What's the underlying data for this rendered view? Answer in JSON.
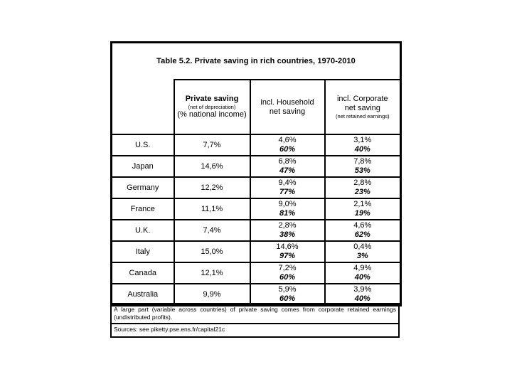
{
  "table": {
    "title": "Table 5.2. Private saving in rich countries, 1970-2010",
    "columns": {
      "private_saving": {
        "title": "Private saving",
        "subtitle": "(net of depreciation)",
        "unit": "(% national income)"
      },
      "household": {
        "line1": "incl. Household",
        "line2": "net saving"
      },
      "corporate": {
        "line1": "incl. Corporate",
        "line2": "net saving",
        "subtitle": "(net retained earnings)"
      }
    },
    "rows": [
      {
        "country": "U.S.",
        "private_saving": "7,7%",
        "household": "4,6%",
        "household_share": "60%",
        "corporate": "3,1%",
        "corporate_share": "40%"
      },
      {
        "country": "Japan",
        "private_saving": "14,6%",
        "household": "6,8%",
        "household_share": "47%",
        "corporate": "7,8%",
        "corporate_share": "53%"
      },
      {
        "country": "Germany",
        "private_saving": "12,2%",
        "household": "9,4%",
        "household_share": "77%",
        "corporate": "2,8%",
        "corporate_share": "23%"
      },
      {
        "country": "France",
        "private_saving": "11,1%",
        "household": "9,0%",
        "household_share": "81%",
        "corporate": "2,1%",
        "corporate_share": "19%"
      },
      {
        "country": "U.K.",
        "private_saving": "7,4%",
        "household": "2,8%",
        "household_share": "38%",
        "corporate": "4,6%",
        "corporate_share": "62%"
      },
      {
        "country": "Italy",
        "private_saving": "15,0%",
        "household": "14,6%",
        "household_share": "97%",
        "corporate": "0,4%",
        "corporate_share": "3%"
      },
      {
        "country": "Canada",
        "private_saving": "12,1%",
        "household": "7,2%",
        "household_share": "60%",
        "corporate": "4,9%",
        "corporate_share": "40%"
      },
      {
        "country": "Australia",
        "private_saving": "9,9%",
        "household": "5,9%",
        "household_share": "60%",
        "corporate": "3,9%",
        "corporate_share": "40%"
      }
    ]
  },
  "notes": {
    "note": "A large part (variable across countries) of private saving comes from corporate retained earnings (undistributed profits).",
    "sources": "Sources: see piketty.pse.ens.fr/capital21c"
  },
  "colors": {
    "border": "#000000",
    "text": "#000000",
    "background": "#ffffff"
  }
}
